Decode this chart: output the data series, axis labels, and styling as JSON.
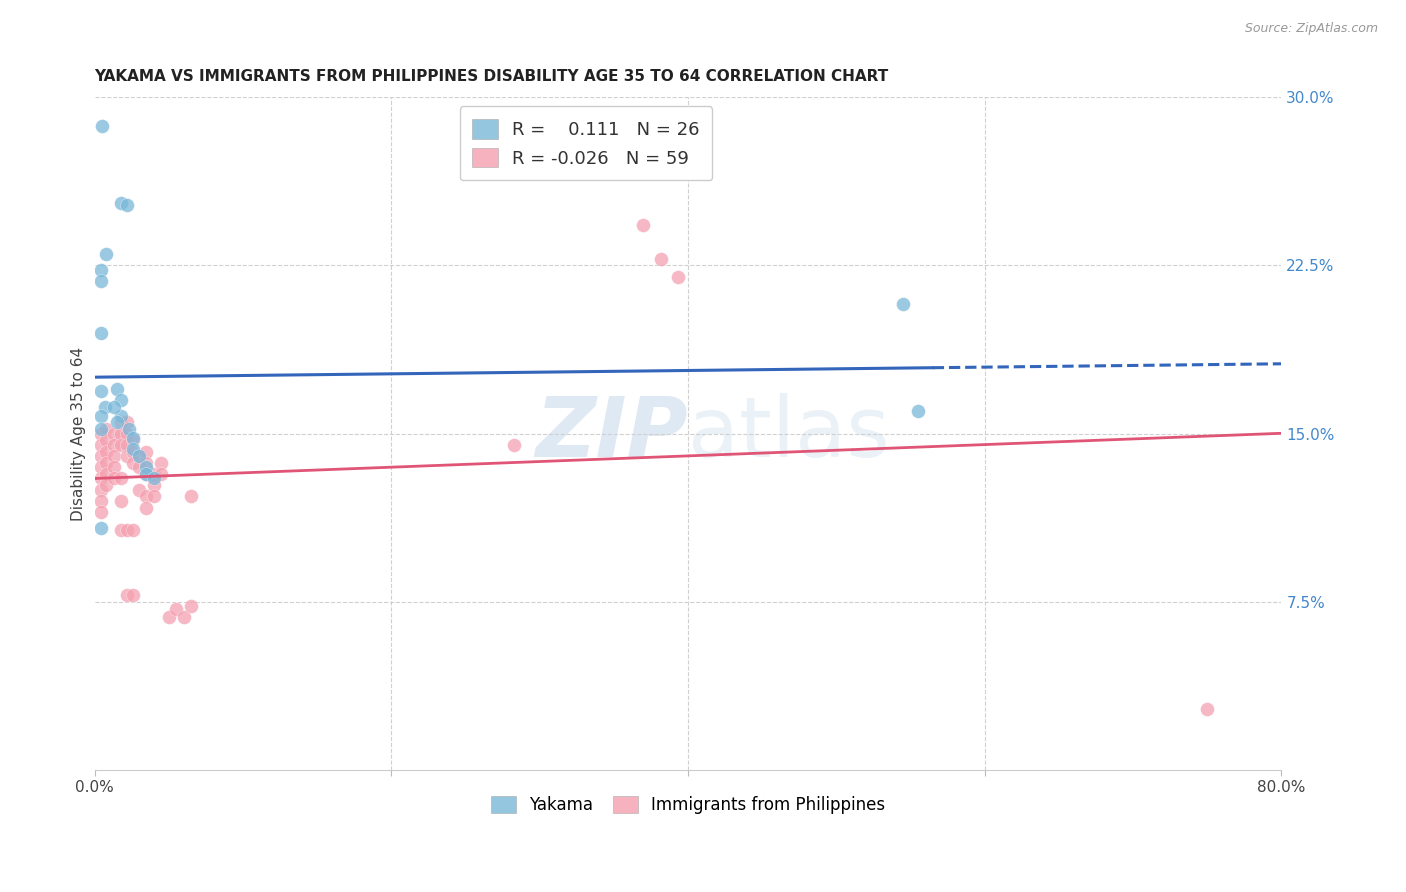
{
  "title": "YAKAMA VS IMMIGRANTS FROM PHILIPPINES DISABILITY AGE 35 TO 64 CORRELATION CHART",
  "source": "Source: ZipAtlas.com",
  "ylabel": "Disability Age 35 to 64",
  "xlim": [
    0.0,
    0.8
  ],
  "ylim": [
    0.0,
    0.3
  ],
  "xticks": [
    0.0,
    0.2,
    0.4,
    0.6,
    0.8
  ],
  "xticklabels": [
    "0.0%",
    "",
    "",
    "",
    "80.0%"
  ],
  "yticks_right": [
    0.075,
    0.15,
    0.225,
    0.3
  ],
  "yticklabels_right": [
    "7.5%",
    "15.0%",
    "22.5%",
    "30.0%"
  ],
  "yakama_scatter_color": "#7ab8d9",
  "philippines_scatter_color": "#f4a0b0",
  "trend_yakama_color": "#3366bb",
  "trend_philippines_color": "#e05575",
  "watermark_color": "#c5d8ea",
  "legend_r_yakama": "R =    0.111",
  "legend_n_yakama": "N = 26",
  "legend_r_philippines": "R = -0.026",
  "legend_n_philippines": "N = 59",
  "yakama_points": [
    [
      0.005,
      0.287
    ],
    [
      0.018,
      0.253
    ],
    [
      0.022,
      0.252
    ],
    [
      0.008,
      0.23
    ],
    [
      0.004,
      0.223
    ],
    [
      0.004,
      0.218
    ],
    [
      0.004,
      0.195
    ],
    [
      0.004,
      0.169
    ],
    [
      0.007,
      0.162
    ],
    [
      0.004,
      0.158
    ],
    [
      0.004,
      0.152
    ],
    [
      0.015,
      0.17
    ],
    [
      0.018,
      0.165
    ],
    [
      0.018,
      0.158
    ],
    [
      0.015,
      0.155
    ],
    [
      0.013,
      0.162
    ],
    [
      0.023,
      0.152
    ],
    [
      0.026,
      0.148
    ],
    [
      0.026,
      0.143
    ],
    [
      0.03,
      0.14
    ],
    [
      0.035,
      0.135
    ],
    [
      0.035,
      0.132
    ],
    [
      0.04,
      0.13
    ],
    [
      0.004,
      0.108
    ],
    [
      0.545,
      0.208
    ],
    [
      0.555,
      0.16
    ]
  ],
  "philippines_points": [
    [
      0.004,
      0.15
    ],
    [
      0.004,
      0.145
    ],
    [
      0.004,
      0.14
    ],
    [
      0.004,
      0.135
    ],
    [
      0.004,
      0.13
    ],
    [
      0.004,
      0.125
    ],
    [
      0.004,
      0.12
    ],
    [
      0.004,
      0.115
    ],
    [
      0.008,
      0.152
    ],
    [
      0.008,
      0.147
    ],
    [
      0.008,
      0.142
    ],
    [
      0.008,
      0.137
    ],
    [
      0.008,
      0.132
    ],
    [
      0.008,
      0.127
    ],
    [
      0.013,
      0.15
    ],
    [
      0.013,
      0.145
    ],
    [
      0.013,
      0.14
    ],
    [
      0.013,
      0.135
    ],
    [
      0.013,
      0.13
    ],
    [
      0.018,
      0.155
    ],
    [
      0.018,
      0.15
    ],
    [
      0.018,
      0.145
    ],
    [
      0.018,
      0.13
    ],
    [
      0.018,
      0.12
    ],
    [
      0.018,
      0.107
    ],
    [
      0.022,
      0.155
    ],
    [
      0.022,
      0.15
    ],
    [
      0.022,
      0.145
    ],
    [
      0.022,
      0.14
    ],
    [
      0.022,
      0.107
    ],
    [
      0.022,
      0.078
    ],
    [
      0.026,
      0.147
    ],
    [
      0.026,
      0.142
    ],
    [
      0.026,
      0.137
    ],
    [
      0.026,
      0.107
    ],
    [
      0.026,
      0.078
    ],
    [
      0.03,
      0.14
    ],
    [
      0.03,
      0.135
    ],
    [
      0.03,
      0.125
    ],
    [
      0.035,
      0.142
    ],
    [
      0.035,
      0.137
    ],
    [
      0.035,
      0.132
    ],
    [
      0.035,
      0.122
    ],
    [
      0.035,
      0.117
    ],
    [
      0.04,
      0.132
    ],
    [
      0.04,
      0.127
    ],
    [
      0.04,
      0.122
    ],
    [
      0.045,
      0.137
    ],
    [
      0.045,
      0.132
    ],
    [
      0.05,
      0.068
    ],
    [
      0.055,
      0.072
    ],
    [
      0.06,
      0.068
    ],
    [
      0.065,
      0.122
    ],
    [
      0.065,
      0.073
    ],
    [
      0.37,
      0.243
    ],
    [
      0.382,
      0.228
    ],
    [
      0.393,
      0.22
    ],
    [
      0.75,
      0.027
    ],
    [
      0.283,
      0.145
    ]
  ],
  "trend_solid_end": 0.565,
  "background_color": "#ffffff",
  "grid_color": "#d0d0d0",
  "spine_color": "#cccccc"
}
